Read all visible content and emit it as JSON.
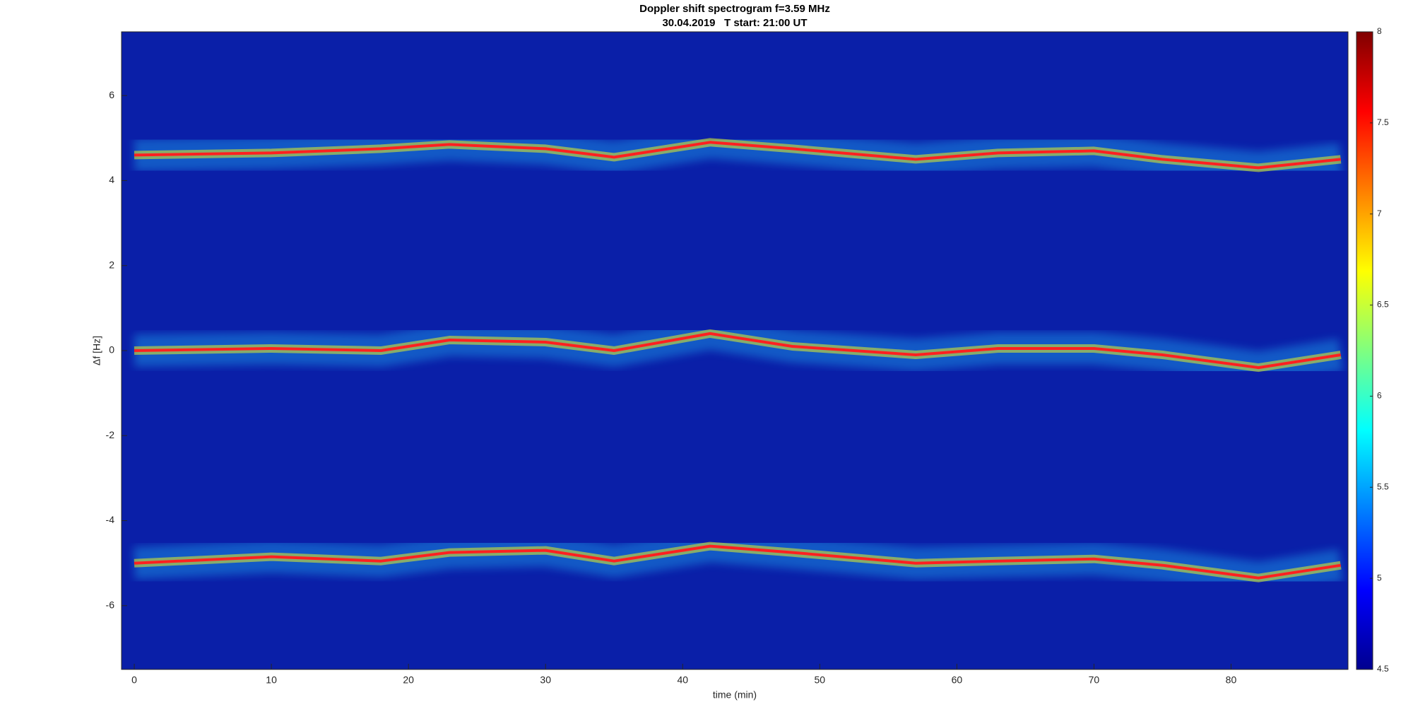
{
  "chart_data": {
    "type": "spectrogram",
    "title": "Doppler shift spectrogram f=3.59 MHz",
    "subtitle": "30.04.2019   T start: 21:00 UT",
    "x_label": "time (min)",
    "y_label": "Δf [Hz]",
    "xlim": [
      -0.93,
      88.53
    ],
    "ylim": [
      -7.5,
      7.5
    ],
    "xticks": [
      0,
      10,
      20,
      30,
      40,
      50,
      60,
      70,
      80
    ],
    "yticks": [
      -6,
      -4,
      -2,
      0,
      2,
      4,
      6
    ],
    "clim": [
      4.5,
      8
    ],
    "cticks": [
      4.5,
      5,
      5.5,
      6,
      6.5,
      7,
      7.5,
      8
    ],
    "colormap": "jet",
    "x": [
      0,
      10,
      18,
      23,
      30,
      35,
      42,
      48,
      57,
      63,
      70,
      75,
      82,
      88
    ],
    "series": [
      {
        "color": "#ff2020",
        "values": [
          4.6,
          4.65,
          4.75,
          4.85,
          4.75,
          4.55,
          4.9,
          4.75,
          4.5,
          4.65,
          4.7,
          4.5,
          4.3,
          4.5
        ]
      },
      {
        "color": "#ff2020",
        "values": [
          0,
          0.05,
          0,
          0.25,
          0.2,
          0,
          0.4,
          0.1,
          -0.1,
          0.05,
          0.05,
          -0.1,
          -0.4,
          -0.1
        ]
      },
      {
        "color": "#ff2020",
        "values": [
          -5,
          -4.85,
          -4.95,
          -4.75,
          -4.7,
          -4.95,
          -4.6,
          -4.75,
          -5,
          -4.95,
          -4.9,
          -5.05,
          -5.35,
          -5.05
        ]
      }
    ]
  }
}
